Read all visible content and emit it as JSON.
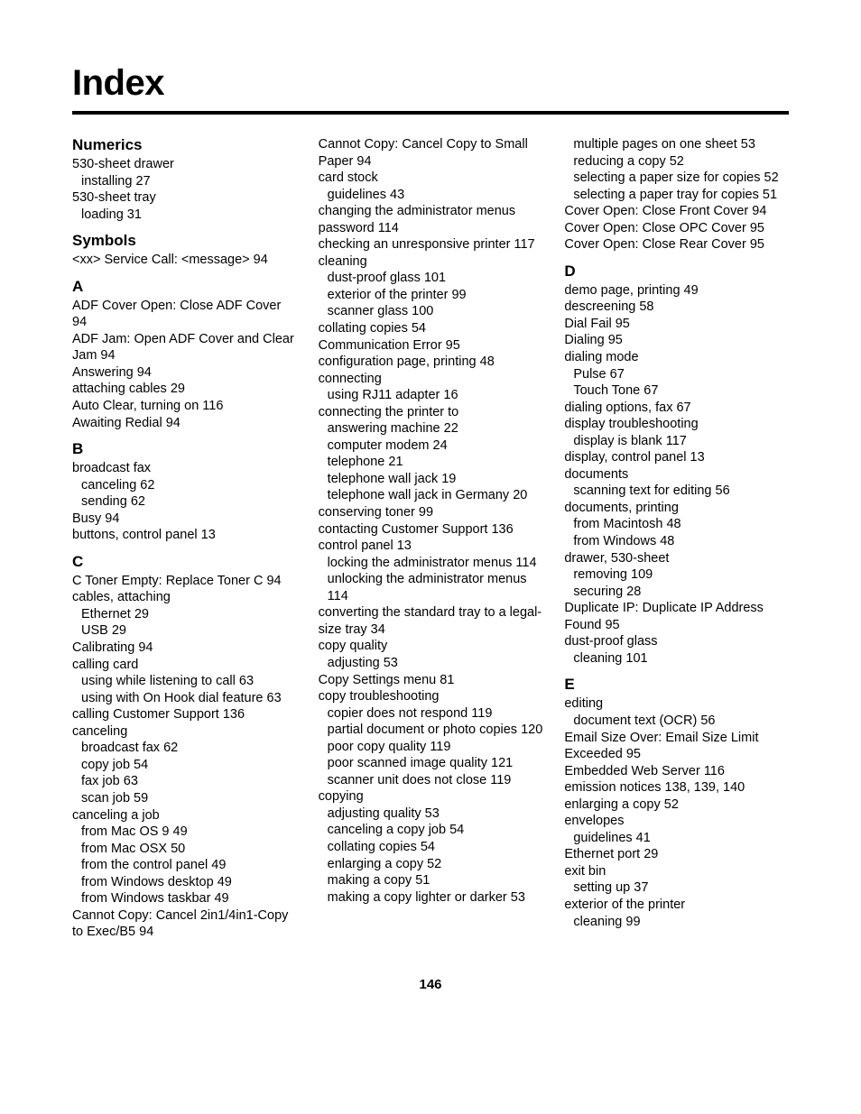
{
  "title": "Index",
  "pageNumber": "146",
  "columns": [
    {
      "blocks": [
        {
          "type": "head",
          "text": "Numerics",
          "first": true
        },
        {
          "type": "entry",
          "text": "530-sheet drawer"
        },
        {
          "type": "entry",
          "text": "installing  27",
          "sub": true
        },
        {
          "type": "entry",
          "text": "530-sheet tray"
        },
        {
          "type": "entry",
          "text": "loading  31",
          "sub": true
        },
        {
          "type": "head",
          "text": "Symbols"
        },
        {
          "type": "entry",
          "text": "<xx> Service Call: <message>  94"
        },
        {
          "type": "head",
          "text": "A"
        },
        {
          "type": "entry",
          "text": "ADF Cover Open: Close ADF Cover  94"
        },
        {
          "type": "entry",
          "text": "ADF Jam: Open ADF Cover and Clear Jam  94"
        },
        {
          "type": "entry",
          "text": "Answering  94"
        },
        {
          "type": "entry",
          "text": "attaching cables  29"
        },
        {
          "type": "entry",
          "text": "Auto Clear, turning on  116"
        },
        {
          "type": "entry",
          "text": "Awaiting Redial  94"
        },
        {
          "type": "head",
          "text": "B"
        },
        {
          "type": "entry",
          "text": "broadcast fax"
        },
        {
          "type": "entry",
          "text": "canceling  62",
          "sub": true
        },
        {
          "type": "entry",
          "text": "sending  62",
          "sub": true
        },
        {
          "type": "entry",
          "text": "Busy  94"
        },
        {
          "type": "entry",
          "text": "buttons, control panel  13"
        },
        {
          "type": "head",
          "text": "C"
        },
        {
          "type": "entry",
          "text": "C Toner Empty: Replace Toner C  94"
        },
        {
          "type": "entry",
          "text": "cables, attaching"
        },
        {
          "type": "entry",
          "text": "Ethernet  29",
          "sub": true
        },
        {
          "type": "entry",
          "text": "USB  29",
          "sub": true
        },
        {
          "type": "entry",
          "text": "Calibrating  94"
        },
        {
          "type": "entry",
          "text": "calling card"
        },
        {
          "type": "entry",
          "text": "using while listening to call  63",
          "sub": true
        },
        {
          "type": "entry",
          "text": "using with On Hook dial feature  63",
          "sub": true
        },
        {
          "type": "entry",
          "text": "calling Customer Support  136"
        },
        {
          "type": "entry",
          "text": "canceling"
        },
        {
          "type": "entry",
          "text": "broadcast fax  62",
          "sub": true
        },
        {
          "type": "entry",
          "text": "copy job  54",
          "sub": true
        },
        {
          "type": "entry",
          "text": "fax job  63",
          "sub": true
        },
        {
          "type": "entry",
          "text": "scan job  59",
          "sub": true
        },
        {
          "type": "entry",
          "text": "canceling a job"
        },
        {
          "type": "entry",
          "text": "from Mac OS 9  49",
          "sub": true
        },
        {
          "type": "entry",
          "text": "from Mac OSX  50",
          "sub": true
        },
        {
          "type": "entry",
          "text": "from the control panel  49",
          "sub": true
        },
        {
          "type": "entry",
          "text": "from Windows desktop  49",
          "sub": true
        },
        {
          "type": "entry",
          "text": "from Windows taskbar  49",
          "sub": true
        },
        {
          "type": "entry",
          "text": "Cannot Copy: Cancel 2in1/4in1-Copy to Exec/B5  94"
        }
      ]
    },
    {
      "blocks": [
        {
          "type": "entry",
          "text": "Cannot Copy: Cancel Copy to Small Paper  94"
        },
        {
          "type": "entry",
          "text": "card stock"
        },
        {
          "type": "entry",
          "text": "guidelines  43",
          "sub": true
        },
        {
          "type": "entry",
          "text": "changing the administrator menus password  114"
        },
        {
          "type": "entry",
          "text": "checking an unresponsive printer  117"
        },
        {
          "type": "entry",
          "text": "cleaning"
        },
        {
          "type": "entry",
          "text": "dust-proof glass  101",
          "sub": true
        },
        {
          "type": "entry",
          "text": "exterior of the printer  99",
          "sub": true
        },
        {
          "type": "entry",
          "text": "scanner glass  100",
          "sub": true
        },
        {
          "type": "entry",
          "text": "collating copies  54"
        },
        {
          "type": "entry",
          "text": "Communication Error  95"
        },
        {
          "type": "entry",
          "text": "configuration page, printing  48"
        },
        {
          "type": "entry",
          "text": "connecting"
        },
        {
          "type": "entry",
          "text": "using RJ11 adapter  16",
          "sub": true
        },
        {
          "type": "entry",
          "text": "connecting the printer to"
        },
        {
          "type": "entry",
          "text": "answering machine  22",
          "sub": true
        },
        {
          "type": "entry",
          "text": "computer modem  24",
          "sub": true
        },
        {
          "type": "entry",
          "text": "telephone  21",
          "sub": true
        },
        {
          "type": "entry",
          "text": "telephone wall jack  19",
          "sub": true
        },
        {
          "type": "entry",
          "text": "telephone wall jack in Germany  20",
          "sub": true
        },
        {
          "type": "entry",
          "text": "conserving toner  99"
        },
        {
          "type": "entry",
          "text": "contacting Customer Support  136"
        },
        {
          "type": "entry",
          "text": "control panel  13"
        },
        {
          "type": "entry",
          "text": "locking the administrator menus  114",
          "sub": true
        },
        {
          "type": "entry",
          "text": "unlocking the administrator menus  114",
          "sub": true
        },
        {
          "type": "entry",
          "text": "converting the standard tray to a legal-size tray  34"
        },
        {
          "type": "entry",
          "text": "copy quality"
        },
        {
          "type": "entry",
          "text": "adjusting  53",
          "sub": true
        },
        {
          "type": "entry",
          "text": "Copy Settings menu  81"
        },
        {
          "type": "entry",
          "text": "copy troubleshooting"
        },
        {
          "type": "entry",
          "text": "copier does not respond  119",
          "sub": true
        },
        {
          "type": "entry",
          "text": "partial document or photo copies  120",
          "sub": true
        },
        {
          "type": "entry",
          "text": "poor copy quality  119",
          "sub": true
        },
        {
          "type": "entry",
          "text": "poor scanned image quality  121",
          "sub": true
        },
        {
          "type": "entry",
          "text": "scanner unit does not close  119",
          "sub": true
        },
        {
          "type": "entry",
          "text": "copying"
        },
        {
          "type": "entry",
          "text": "adjusting quality  53",
          "sub": true
        },
        {
          "type": "entry",
          "text": "canceling a copy job  54",
          "sub": true
        },
        {
          "type": "entry",
          "text": "collating copies  54",
          "sub": true
        },
        {
          "type": "entry",
          "text": "enlarging a copy  52",
          "sub": true
        },
        {
          "type": "entry",
          "text": "making a copy  51",
          "sub": true
        },
        {
          "type": "entry",
          "text": "making a copy lighter or darker  53",
          "sub": true
        }
      ]
    },
    {
      "blocks": [
        {
          "type": "entry",
          "text": "multiple pages on one sheet  53",
          "sub": true
        },
        {
          "type": "entry",
          "text": "reducing a copy  52",
          "sub": true
        },
        {
          "type": "entry",
          "text": "selecting a paper size for copies  52",
          "sub": true
        },
        {
          "type": "entry",
          "text": "selecting a paper tray for copies  51",
          "sub": true
        },
        {
          "type": "entry",
          "text": "Cover Open: Close Front Cover  94"
        },
        {
          "type": "entry",
          "text": "Cover Open: Close OPC Cover  95"
        },
        {
          "type": "entry",
          "text": "Cover Open: Close Rear Cover  95"
        },
        {
          "type": "head",
          "text": "D"
        },
        {
          "type": "entry",
          "text": "demo page, printing  49"
        },
        {
          "type": "entry",
          "text": "descreening  58"
        },
        {
          "type": "entry",
          "text": "Dial Fail  95"
        },
        {
          "type": "entry",
          "text": "Dialing  95"
        },
        {
          "type": "entry",
          "text": "dialing mode"
        },
        {
          "type": "entry",
          "text": "Pulse  67",
          "sub": true
        },
        {
          "type": "entry",
          "text": "Touch Tone  67",
          "sub": true
        },
        {
          "type": "entry",
          "text": "dialing options, fax  67"
        },
        {
          "type": "entry",
          "text": "display troubleshooting"
        },
        {
          "type": "entry",
          "text": "display is blank  117",
          "sub": true
        },
        {
          "type": "entry",
          "text": "display, control panel  13"
        },
        {
          "type": "entry",
          "text": "documents"
        },
        {
          "type": "entry",
          "text": "scanning text for editing  56",
          "sub": true
        },
        {
          "type": "entry",
          "text": "documents, printing"
        },
        {
          "type": "entry",
          "text": "from Macintosh  48",
          "sub": true
        },
        {
          "type": "entry",
          "text": "from Windows  48",
          "sub": true
        },
        {
          "type": "entry",
          "text": "drawer, 530-sheet"
        },
        {
          "type": "entry",
          "text": "removing  109",
          "sub": true
        },
        {
          "type": "entry",
          "text": "securing  28",
          "sub": true
        },
        {
          "type": "entry",
          "text": "Duplicate IP: Duplicate IP Address Found  95"
        },
        {
          "type": "entry",
          "text": "dust-proof glass"
        },
        {
          "type": "entry",
          "text": "cleaning  101",
          "sub": true
        },
        {
          "type": "head",
          "text": "E"
        },
        {
          "type": "entry",
          "text": "editing"
        },
        {
          "type": "entry",
          "text": "document text (OCR)  56",
          "sub": true
        },
        {
          "type": "entry",
          "text": "Email Size Over: Email Size Limit Exceeded  95"
        },
        {
          "type": "entry",
          "text": "Embedded Web Server  116"
        },
        {
          "type": "entry",
          "text": "emission notices  138, 139, 140"
        },
        {
          "type": "entry",
          "text": "enlarging a copy  52"
        },
        {
          "type": "entry",
          "text": "envelopes"
        },
        {
          "type": "entry",
          "text": "guidelines  41",
          "sub": true
        },
        {
          "type": "entry",
          "text": "Ethernet port  29"
        },
        {
          "type": "entry",
          "text": "exit bin"
        },
        {
          "type": "entry",
          "text": "setting up  37",
          "sub": true
        },
        {
          "type": "entry",
          "text": "exterior of the printer"
        },
        {
          "type": "entry",
          "text": "cleaning  99",
          "sub": true
        }
      ]
    }
  ]
}
